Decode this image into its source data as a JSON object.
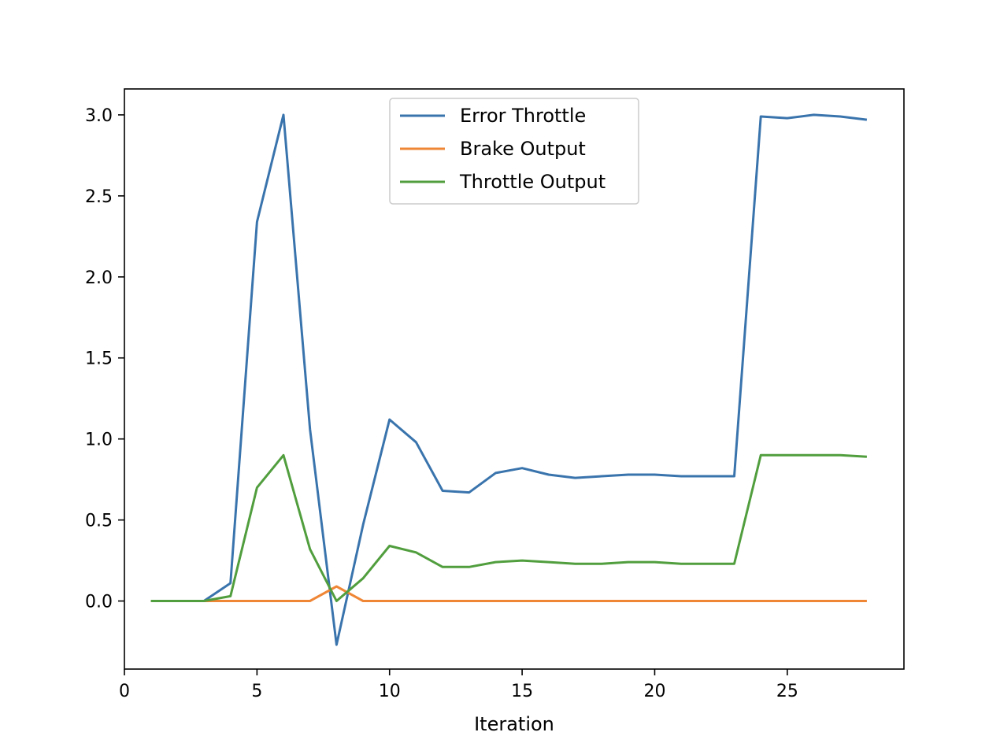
{
  "chart_data": {
    "type": "line",
    "xlabel": "Iteration",
    "ylabel": "",
    "xlim": [
      0.0,
      29.4
    ],
    "ylim": [
      -0.42,
      3.16
    ],
    "xticks": [
      0,
      5,
      10,
      15,
      20,
      25
    ],
    "yticks": [
      0.0,
      0.5,
      1.0,
      1.5,
      2.0,
      2.5,
      3.0
    ],
    "xtick_labels": [
      "0",
      "5",
      "10",
      "15",
      "20",
      "25"
    ],
    "ytick_labels": [
      "0.0",
      "0.5",
      "1.0",
      "1.5",
      "2.0",
      "2.5",
      "3.0"
    ],
    "grid": false,
    "legend_position": "upper-center",
    "x": [
      1,
      2,
      3,
      4,
      5,
      6,
      7,
      8,
      9,
      10,
      11,
      12,
      13,
      14,
      15,
      16,
      17,
      18,
      19,
      20,
      21,
      22,
      23,
      24,
      25,
      26,
      27,
      28
    ],
    "series": [
      {
        "name": "Error Throttle",
        "color": "#3a74ad",
        "values": [
          0.0,
          0.0,
          0.0,
          0.11,
          2.34,
          3.0,
          1.06,
          -0.27,
          0.47,
          1.12,
          0.98,
          0.68,
          0.67,
          0.79,
          0.82,
          0.78,
          0.76,
          0.77,
          0.78,
          0.78,
          0.77,
          0.77,
          0.77,
          2.99,
          2.98,
          3.0,
          2.99,
          2.97
        ]
      },
      {
        "name": "Brake Output",
        "color": "#ef8636",
        "values": [
          0.0,
          0.0,
          0.0,
          0.0,
          0.0,
          0.0,
          0.0,
          0.09,
          0.0,
          0.0,
          0.0,
          0.0,
          0.0,
          0.0,
          0.0,
          0.0,
          0.0,
          0.0,
          0.0,
          0.0,
          0.0,
          0.0,
          0.0,
          0.0,
          0.0,
          0.0,
          0.0,
          0.0
        ]
      },
      {
        "name": "Throttle Output",
        "color": "#519e3e",
        "values": [
          0.0,
          0.0,
          0.0,
          0.03,
          0.7,
          0.9,
          0.32,
          0.0,
          0.14,
          0.34,
          0.3,
          0.21,
          0.21,
          0.24,
          0.25,
          0.24,
          0.23,
          0.23,
          0.24,
          0.24,
          0.23,
          0.23,
          0.23,
          0.9,
          0.9,
          0.9,
          0.9,
          0.89
        ]
      }
    ]
  }
}
